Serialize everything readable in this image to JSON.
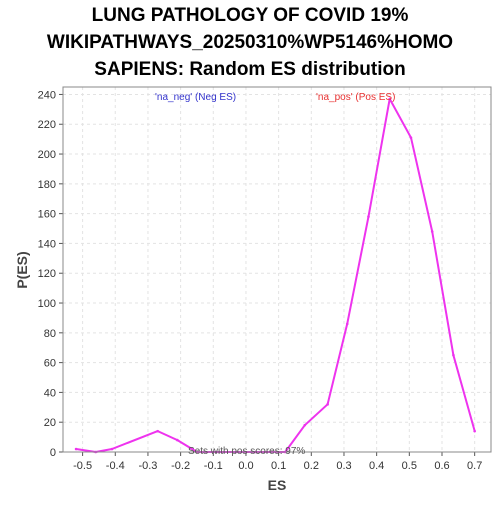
{
  "chart_data": {
    "type": "line",
    "title_lines": [
      "LUNG PATHOLOGY OF COVID 19%",
      "WIKIPATHWAYS_20250310%WP5146%HOMO",
      "SAPIENS: Random ES distribution"
    ],
    "xlabel": "ES",
    "ylabel": "P(ES)",
    "xlim": [
      -0.56,
      0.75
    ],
    "ylim": [
      0,
      245
    ],
    "x_ticks": [
      -0.5,
      -0.4,
      -0.3,
      -0.2,
      -0.1,
      0.0,
      0.1,
      0.2,
      0.3,
      0.4,
      0.5,
      0.6,
      0.7
    ],
    "x_tick_labels": [
      "-0.5",
      "-0.4",
      "-0.3",
      "-0.2",
      "-0.1",
      "0.0",
      "0.1",
      "0.2",
      "0.3",
      "0.4",
      "0.5",
      "0.6",
      "0.7"
    ],
    "y_ticks": [
      0,
      20,
      40,
      60,
      80,
      100,
      120,
      140,
      160,
      180,
      200,
      220,
      240
    ],
    "y_tick_labels": [
      "0",
      "20",
      "40",
      "60",
      "80",
      "100",
      "120",
      "140",
      "160",
      "180",
      "200",
      "220",
      "240"
    ],
    "grid": true,
    "legend": [
      {
        "label": "'na_neg' (Neg ES)",
        "color": "#3333cc",
        "position": "top-left"
      },
      {
        "label": "'na_pos' (Pos ES)",
        "color": "#e83030",
        "position": "top-right"
      }
    ],
    "annotation": "Sets with pos scores: 97%",
    "series": [
      {
        "color": "#ee33ee",
        "x": [
          -0.52,
          -0.46,
          -0.41,
          -0.27,
          -0.21,
          -0.15,
          -0.09,
          -0.03,
          0.03,
          0.12,
          0.18,
          0.25,
          0.31,
          0.375,
          0.44,
          0.505,
          0.57,
          0.635,
          0.7
        ],
        "y": [
          2,
          0,
          2,
          14,
          8,
          0,
          0,
          0,
          0,
          0,
          18,
          32,
          86,
          158,
          237,
          211,
          148,
          65,
          14
        ]
      }
    ]
  }
}
